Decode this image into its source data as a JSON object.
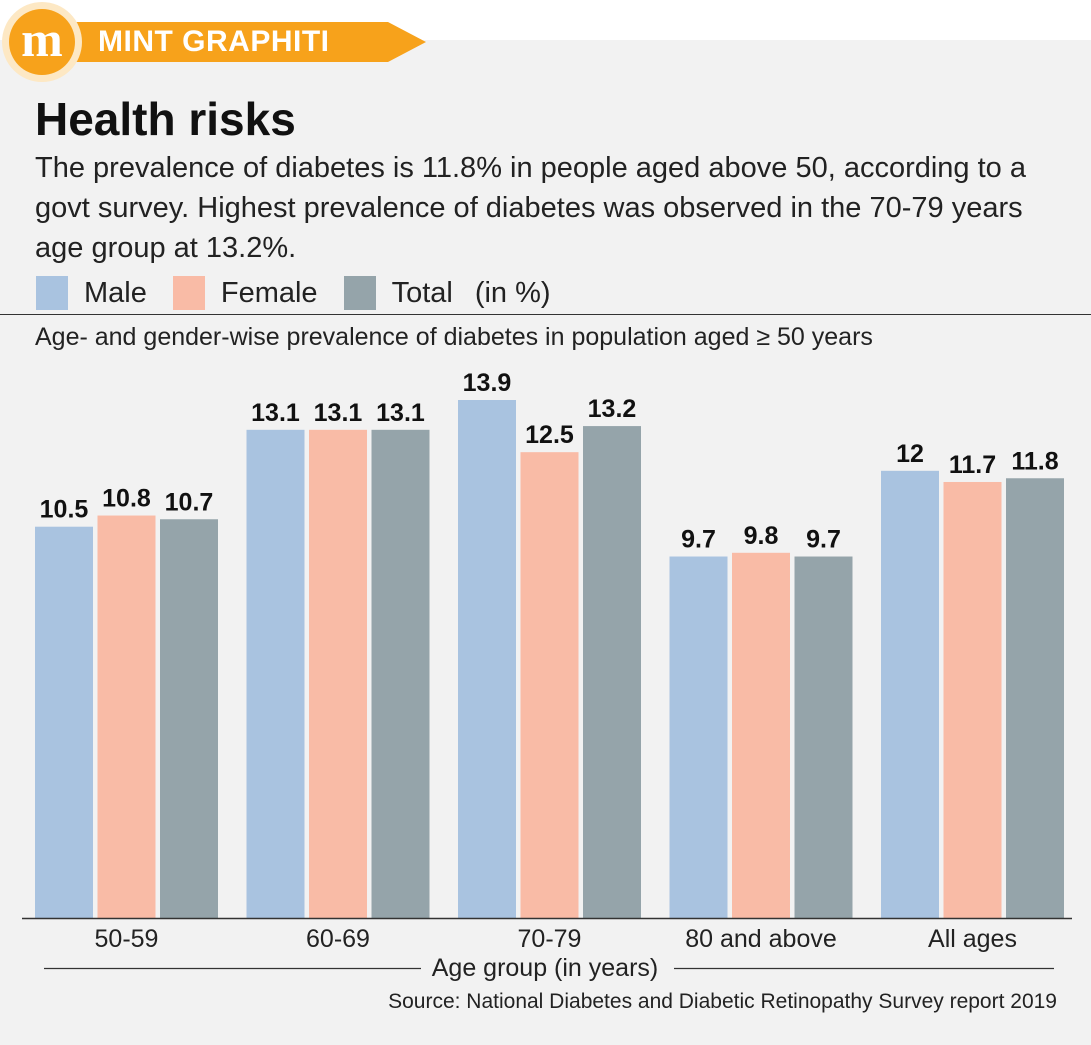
{
  "brand": {
    "logo_letter": "m",
    "name": "MINT GRAPHITI"
  },
  "header": {
    "title": "Health risks",
    "subtitle": "The prevalence of diabetes is 11.8% in people aged above 50, according to a govt survey. Highest prevalence of diabetes was observed in the 70-79 years age group at 13.2%."
  },
  "legend": {
    "unit": "(in %)"
  },
  "colors": {
    "male": "#a9c3e0",
    "female": "#f9bba6",
    "total": "#95a4aa",
    "accent": "#f7a21b"
  },
  "source": "Source: National Diabetes and Diabetic Retinopathy Survey report 2019",
  "chart_data": {
    "type": "bar",
    "title": "Age- and gender-wise prevalence of diabetes in population aged ≥ 50 years",
    "xlabel": "Age group (in years)",
    "ylabel": "",
    "categories": [
      "50-59",
      "60-69",
      "70-79",
      "80 and above",
      "All ages"
    ],
    "series": [
      {
        "name": "Male",
        "color": "#a9c3e0",
        "values": [
          10.5,
          13.1,
          13.9,
          9.7,
          12
        ],
        "labels": [
          "10.5",
          "13.1",
          "13.9",
          "9.7",
          "12"
        ]
      },
      {
        "name": "Female",
        "color": "#f9bba6",
        "values": [
          10.8,
          13.1,
          12.5,
          9.8,
          11.7
        ],
        "labels": [
          "10.8",
          "13.1",
          "12.5",
          "9.8",
          "11.7"
        ]
      },
      {
        "name": "Total",
        "color": "#95a4aa",
        "values": [
          10.7,
          13.1,
          13.2,
          9.7,
          11.8
        ],
        "labels": [
          "10.7",
          "13.1",
          "13.2",
          "9.7",
          "11.8"
        ]
      }
    ],
    "ylim": [
      0,
      13.9
    ],
    "grid": false,
    "legend_position": "top-left"
  }
}
